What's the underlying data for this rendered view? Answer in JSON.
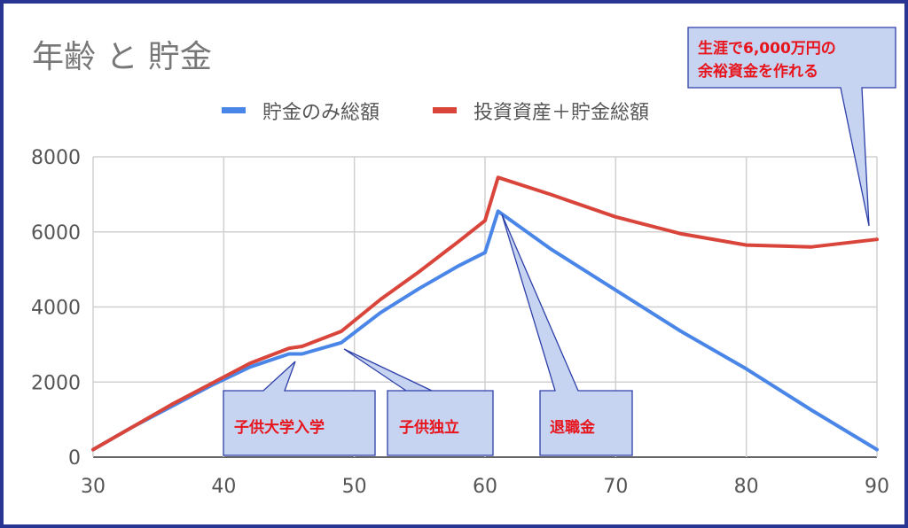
{
  "chart_data": {
    "type": "line",
    "title": "年齢 と 貯金",
    "xlabel": "",
    "ylabel": "",
    "xlim": [
      30,
      90
    ],
    "ylim": [
      0,
      8000
    ],
    "xticks": [
      "30",
      "40",
      "50",
      "60",
      "70",
      "80",
      "90"
    ],
    "yticks": [
      "0",
      "2000",
      "4000",
      "6000",
      "8000"
    ],
    "grid": true,
    "legend_position": "top",
    "series": [
      {
        "name": "貯金のみ総額",
        "color": "#4a86e8",
        "points": [
          [
            30,
            200
          ],
          [
            33,
            800
          ],
          [
            36,
            1350
          ],
          [
            39,
            1900
          ],
          [
            42,
            2400
          ],
          [
            45,
            2750
          ],
          [
            46,
            2750
          ],
          [
            49,
            3050
          ],
          [
            52,
            3850
          ],
          [
            55,
            4500
          ],
          [
            58,
            5100
          ],
          [
            60,
            5450
          ],
          [
            61,
            6550
          ],
          [
            65,
            5550
          ],
          [
            70,
            4450
          ],
          [
            75,
            3350
          ],
          [
            80,
            2350
          ],
          [
            85,
            1250
          ],
          [
            90,
            200
          ]
        ]
      },
      {
        "name": "投資資産＋貯金総額",
        "color": "#d9453a",
        "points": [
          [
            30,
            200
          ],
          [
            33,
            800
          ],
          [
            36,
            1400
          ],
          [
            39,
            1950
          ],
          [
            42,
            2500
          ],
          [
            45,
            2900
          ],
          [
            46,
            2950
          ],
          [
            49,
            3350
          ],
          [
            52,
            4200
          ],
          [
            55,
            4950
          ],
          [
            58,
            5750
          ],
          [
            60,
            6300
          ],
          [
            61,
            7450
          ],
          [
            65,
            7000
          ],
          [
            70,
            6400
          ],
          [
            75,
            5950
          ],
          [
            80,
            5650
          ],
          [
            85,
            5600
          ],
          [
            90,
            5800
          ]
        ]
      }
    ],
    "annotations": [
      {
        "text": "子供大学入学",
        "color": "#e8141c",
        "box_color": "#c6d4f2"
      },
      {
        "text": "子供独立",
        "color": "#e8141c",
        "box_color": "#c6d4f2"
      },
      {
        "text": "退職金",
        "color": "#e8141c",
        "box_color": "#c6d4f2"
      },
      {
        "text_lines": [
          "生涯で6,000万円の",
          "余裕資金を作れる"
        ],
        "color": "#e8141c",
        "box_color": "#c6d4f2"
      }
    ]
  }
}
